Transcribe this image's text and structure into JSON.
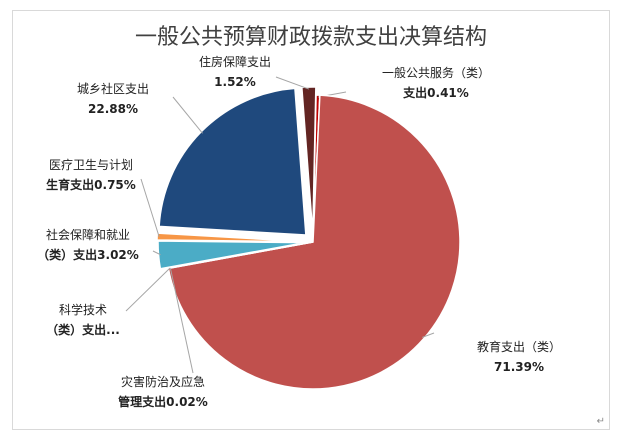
{
  "chart_data": {
    "type": "pie",
    "title": "一般公共预算财政拨款支出决算结构",
    "slices": [
      {
        "name": "一般公共服务（类）",
        "value_label": "支出0.41%",
        "label_lines": [
          "一般公共服务（类）",
          "支出0.41%"
        ],
        "value": 0.41,
        "color": "#C00000"
      },
      {
        "name": "教育支出（类）",
        "value_label": "71.39%",
        "label_lines": [
          "教育支出（类）",
          "71.39%"
        ],
        "value": 71.39,
        "color": "#C0504D"
      },
      {
        "name": "灾害防治及应急管理支出",
        "value_label": "0.02%",
        "label_lines": [
          "灾害防治及应急",
          "管理支出0.02%"
        ],
        "value": 0.02,
        "color": "#9BBB59"
      },
      {
        "name": "科学技术（类）支出",
        "value_label": "",
        "label_lines": [
          "科学技术",
          "（类）支出..."
        ],
        "value": 0.01,
        "color": "#8064A2"
      },
      {
        "name": "社会保障和就业（类）支出",
        "value_label": "3.02%",
        "label_lines": [
          "社会保障和就业",
          "（类）支出3.02%"
        ],
        "value": 3.02,
        "color": "#4BACC6"
      },
      {
        "name": "医疗卫生与计划生育支出",
        "value_label": "0.75%",
        "label_lines": [
          "医疗卫生与计划",
          "生育支出0.75%"
        ],
        "value": 0.75,
        "color": "#F79646"
      },
      {
        "name": "城乡社区支出",
        "value_label": "22.88%",
        "label_lines": [
          "城乡社区支出",
          "22.88%"
        ],
        "value": 22.88,
        "color": "#1F497D"
      },
      {
        "name": "住房保障支出",
        "value_label": "1.52%",
        "label_lines": [
          "住房保障支出",
          "1.52%"
        ],
        "value": 1.52,
        "color": "#632523"
      }
    ]
  }
}
